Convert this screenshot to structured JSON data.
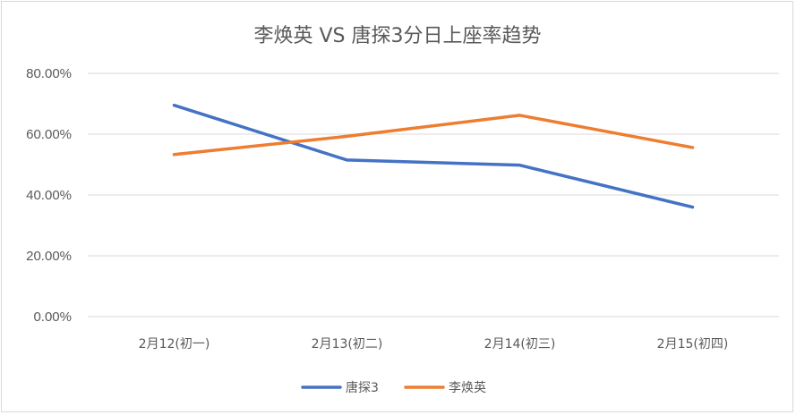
{
  "chart_data": {
    "type": "line",
    "title": "李焕英 VS 唐探3分日上座率趋势",
    "xlabel": "",
    "ylabel": "",
    "categories": [
      "2月12(初一)",
      "2月13(初二)",
      "2月14(初三)",
      "2月15(初四)"
    ],
    "ylim": [
      0,
      80
    ],
    "yticks": [
      0,
      20,
      40,
      60,
      80
    ],
    "ytick_labels": [
      "0.00%",
      "20.00%",
      "40.00%",
      "60.00%",
      "80.00%"
    ],
    "grid": true,
    "legend": "bottom",
    "series": [
      {
        "name": "唐探3",
        "color": "#4472c4",
        "values": [
          69.5,
          51.5,
          49.8,
          36.0
        ]
      },
      {
        "name": "李焕英",
        "color": "#ed7d31",
        "values": [
          53.3,
          59.3,
          66.2,
          55.6
        ]
      }
    ]
  }
}
